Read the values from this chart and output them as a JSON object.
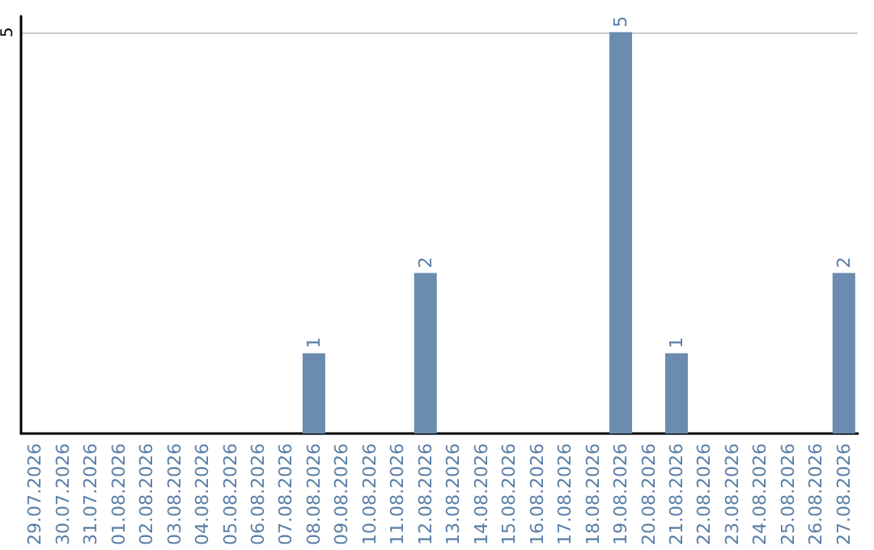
{
  "chart_data": {
    "type": "bar",
    "categories": [
      "29.07.2026",
      "30.07.2026",
      "31.07.2026",
      "01.08.2026",
      "02.08.2026",
      "03.08.2026",
      "04.08.2026",
      "05.08.2026",
      "06.08.2026",
      "07.08.2026",
      "08.08.2026",
      "09.08.2026",
      "10.08.2026",
      "11.08.2026",
      "12.08.2026",
      "13.08.2026",
      "14.08.2026",
      "15.08.2026",
      "16.08.2026",
      "17.08.2026",
      "18.08.2026",
      "19.08.2026",
      "20.08.2026",
      "21.08.2026",
      "22.08.2026",
      "23.08.2026",
      "24.08.2026",
      "25.08.2026",
      "26.08.2026",
      "27.08.2026"
    ],
    "values": [
      0,
      0,
      0,
      0,
      0,
      0,
      0,
      0,
      0,
      0,
      1,
      0,
      0,
      0,
      2,
      0,
      0,
      0,
      0,
      0,
      0,
      5,
      0,
      1,
      0,
      0,
      0,
      0,
      0,
      2
    ],
    "value_labels": [
      null,
      null,
      null,
      null,
      null,
      null,
      null,
      null,
      null,
      null,
      "1",
      null,
      null,
      null,
      "2",
      null,
      null,
      null,
      null,
      null,
      null,
      "5",
      null,
      "1",
      null,
      null,
      null,
      null,
      null,
      "2"
    ],
    "color": "#6b8cae",
    "ylim": [
      0,
      5.2
    ],
    "yticks": [
      5
    ],
    "grid": "y"
  }
}
